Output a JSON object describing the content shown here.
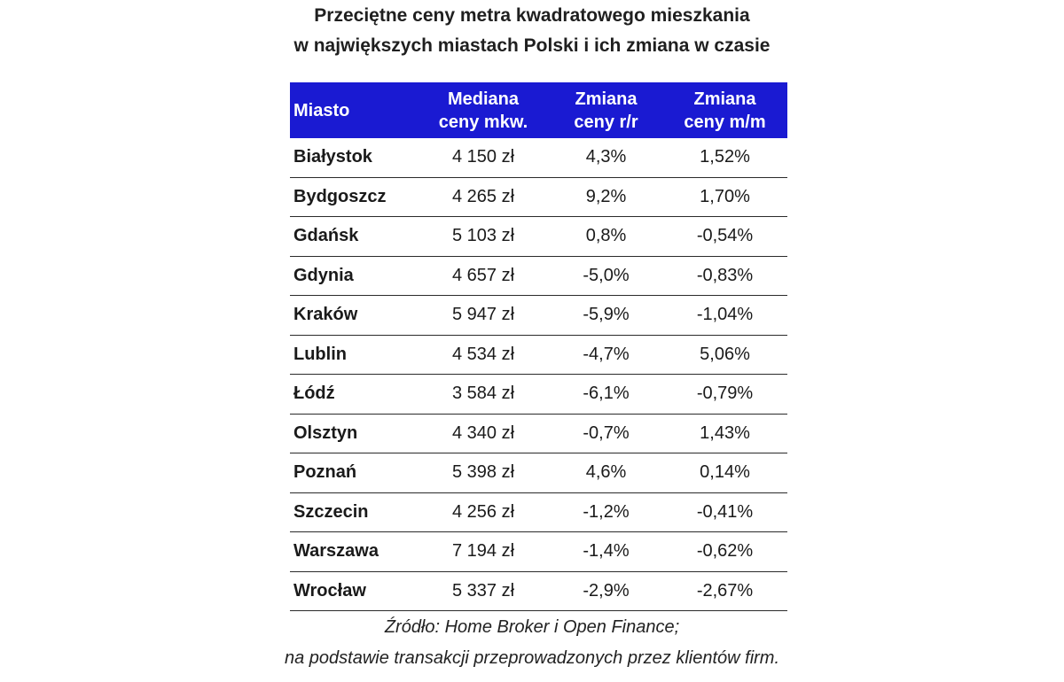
{
  "title": {
    "line1": "Przeciętne ceny metra kwadratowego mieszkania",
    "line2": "w największych miastach Polski i ich zmiana w czasie"
  },
  "colors": {
    "header_background": "#1a1ad2",
    "header_text": "#ffffff"
  },
  "table": {
    "headers": [
      {
        "line1": "Miasto",
        "line2": ""
      },
      {
        "line1": "Mediana",
        "line2": "ceny mkw."
      },
      {
        "line1": "Zmiana",
        "line2": "ceny r/r"
      },
      {
        "line1": "Zmiana",
        "line2": "ceny m/m"
      }
    ],
    "rows": [
      {
        "city": "Białystok",
        "median": "4 150 zł",
        "yoy": "4,3%",
        "mom": "1,52%"
      },
      {
        "city": "Bydgoszcz",
        "median": "4 265 zł",
        "yoy": "9,2%",
        "mom": "1,70%"
      },
      {
        "city": "Gdańsk",
        "median": "5 103 zł",
        "yoy": "0,8%",
        "mom": "-0,54%"
      },
      {
        "city": "Gdynia",
        "median": "4 657 zł",
        "yoy": "-5,0%",
        "mom": "-0,83%"
      },
      {
        "city": "Kraków",
        "median": "5 947 zł",
        "yoy": "-5,9%",
        "mom": "-1,04%"
      },
      {
        "city": "Lublin",
        "median": "4 534 zł",
        "yoy": "-4,7%",
        "mom": "5,06%"
      },
      {
        "city": "Łódź",
        "median": "3 584 zł",
        "yoy": "-6,1%",
        "mom": "-0,79%"
      },
      {
        "city": "Olsztyn",
        "median": "4 340 zł",
        "yoy": "-0,7%",
        "mom": "1,43%"
      },
      {
        "city": "Poznań",
        "median": "5 398 zł",
        "yoy": "4,6%",
        "mom": "0,14%"
      },
      {
        "city": "Szczecin",
        "median": "4 256 zł",
        "yoy": "-1,2%",
        "mom": "-0,41%"
      },
      {
        "city": "Warszawa",
        "median": "7 194 zł",
        "yoy": "-1,4%",
        "mom": "-0,62%"
      },
      {
        "city": "Wrocław",
        "median": "5 337 zł",
        "yoy": "-2,9%",
        "mom": "-2,67%"
      }
    ]
  },
  "source": {
    "line1": "Źródło: Home Broker i Open Finance;",
    "line2": "na podstawie transakcji przeprowadzonych przez klientów firm."
  }
}
